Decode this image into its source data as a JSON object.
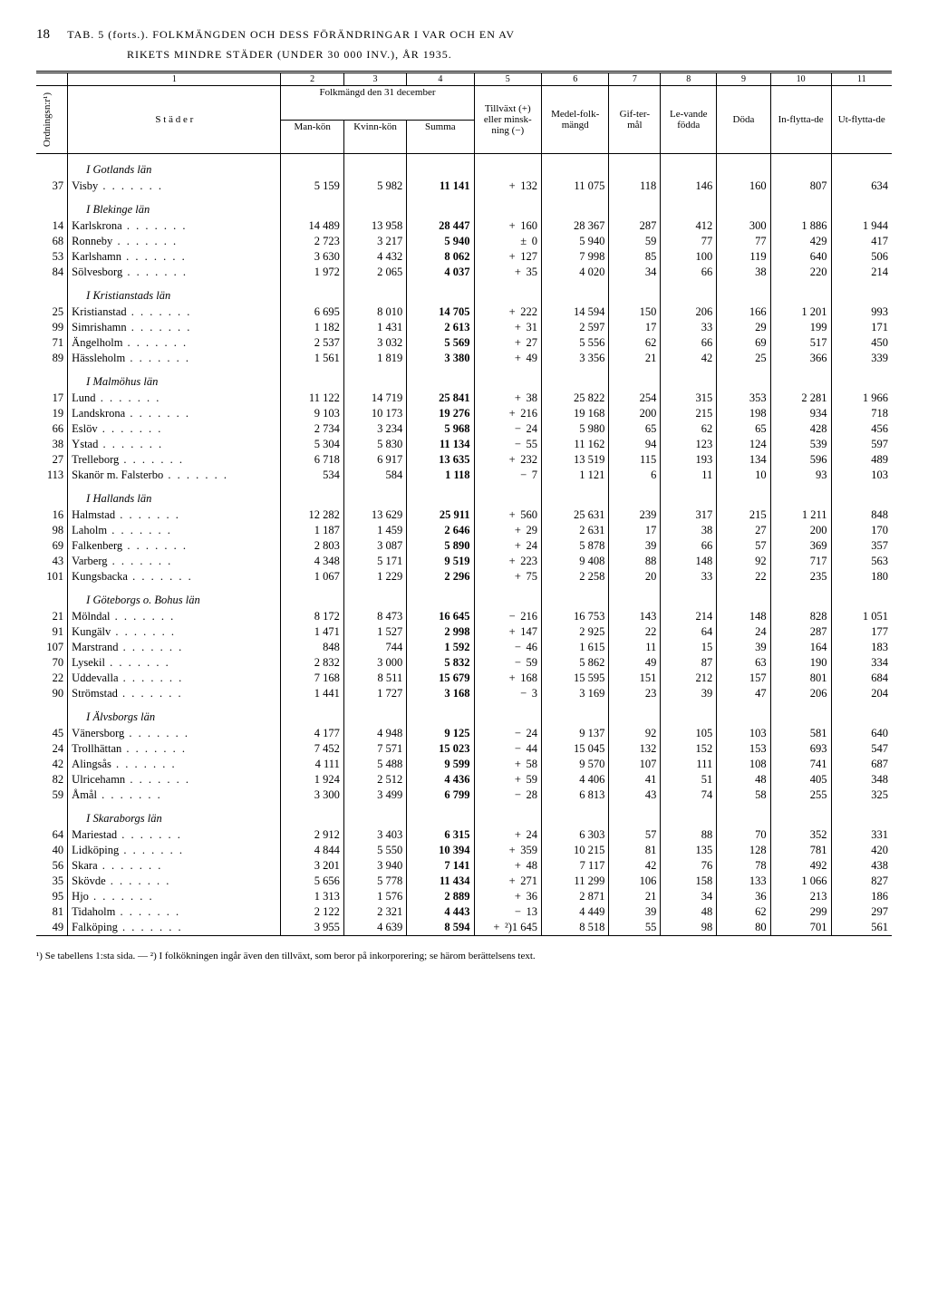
{
  "page_number": "18",
  "title_line1": "TAB. 5 (forts.).   FOLKMÄNGDEN OCH DESS FÖRÄNDRINGAR I VAR OCH EN AV",
  "title_line2": "RIKETS MINDRE STÄDER (UNDER 30 000 INV.), ÅR 1935.",
  "col_nums": [
    "1",
    "2",
    "3",
    "4",
    "5",
    "6",
    "7",
    "8",
    "9",
    "10",
    "11"
  ],
  "headers": {
    "ord": "Ordningsn:r¹)",
    "stader": "S t ä d e r",
    "folkmangd": "Folkmängd den 31 december",
    "man": "Man-kön",
    "kvinn": "Kvinn-kön",
    "summa": "Summa",
    "tillvaxt": "Tillväxt (+) eller minsk-ning (−)",
    "medel": "Medel-folk-mängd",
    "gifter": "Gif-ter-mål",
    "levande": "Le-vande födda",
    "doda": "Döda",
    "inflytta": "In-flytta-de",
    "utflytta": "Ut-flytta-de"
  },
  "regions": [
    {
      "name": "I Gotlands län",
      "rows": [
        {
          "o": "37",
          "c": "Visby",
          "m": "5 159",
          "k": "5 982",
          "s": "11 141",
          "t": "+",
          "tv": "132",
          "mf": "11 075",
          "g": "118",
          "lv": "146",
          "d": "160",
          "in": "807",
          "ut": "634"
        }
      ]
    },
    {
      "name": "I Blekinge län",
      "rows": [
        {
          "o": "14",
          "c": "Karlskrona",
          "m": "14 489",
          "k": "13 958",
          "s": "28 447",
          "t": "+",
          "tv": "160",
          "mf": "28 367",
          "g": "287",
          "lv": "412",
          "d": "300",
          "in": "1 886",
          "ut": "1 944"
        },
        {
          "o": "68",
          "c": "Ronneby",
          "m": "2 723",
          "k": "3 217",
          "s": "5 940",
          "t": "±",
          "tv": "0",
          "mf": "5 940",
          "g": "59",
          "lv": "77",
          "d": "77",
          "in": "429",
          "ut": "417"
        },
        {
          "o": "53",
          "c": "Karlshamn",
          "m": "3 630",
          "k": "4 432",
          "s": "8 062",
          "t": "+",
          "tv": "127",
          "mf": "7 998",
          "g": "85",
          "lv": "100",
          "d": "119",
          "in": "640",
          "ut": "506"
        },
        {
          "o": "84",
          "c": "Sölvesborg",
          "m": "1 972",
          "k": "2 065",
          "s": "4 037",
          "t": "+",
          "tv": "35",
          "mf": "4 020",
          "g": "34",
          "lv": "66",
          "d": "38",
          "in": "220",
          "ut": "214"
        }
      ]
    },
    {
      "name": "I Kristianstads län",
      "rows": [
        {
          "o": "25",
          "c": "Kristianstad",
          "m": "6 695",
          "k": "8 010",
          "s": "14 705",
          "t": "+",
          "tv": "222",
          "mf": "14 594",
          "g": "150",
          "lv": "206",
          "d": "166",
          "in": "1 201",
          "ut": "993"
        },
        {
          "o": "99",
          "c": "Simrishamn",
          "m": "1 182",
          "k": "1 431",
          "s": "2 613",
          "t": "+",
          "tv": "31",
          "mf": "2 597",
          "g": "17",
          "lv": "33",
          "d": "29",
          "in": "199",
          "ut": "171"
        },
        {
          "o": "71",
          "c": "Ängelholm",
          "m": "2 537",
          "k": "3 032",
          "s": "5 569",
          "t": "+",
          "tv": "27",
          "mf": "5 556",
          "g": "62",
          "lv": "66",
          "d": "69",
          "in": "517",
          "ut": "450"
        },
        {
          "o": "89",
          "c": "Hässleholm",
          "m": "1 561",
          "k": "1 819",
          "s": "3 380",
          "t": "+",
          "tv": "49",
          "mf": "3 356",
          "g": "21",
          "lv": "42",
          "d": "25",
          "in": "366",
          "ut": "339"
        }
      ]
    },
    {
      "name": "I Malmöhus län",
      "rows": [
        {
          "o": "17",
          "c": "Lund",
          "m": "11 122",
          "k": "14 719",
          "s": "25 841",
          "t": "+",
          "tv": "38",
          "mf": "25 822",
          "g": "254",
          "lv": "315",
          "d": "353",
          "in": "2 281",
          "ut": "1 966"
        },
        {
          "o": "19",
          "c": "Landskrona",
          "m": "9 103",
          "k": "10 173",
          "s": "19 276",
          "t": "+",
          "tv": "216",
          "mf": "19 168",
          "g": "200",
          "lv": "215",
          "d": "198",
          "in": "934",
          "ut": "718"
        },
        {
          "o": "66",
          "c": "Eslöv",
          "m": "2 734",
          "k": "3 234",
          "s": "5 968",
          "t": "−",
          "tv": "24",
          "mf": "5 980",
          "g": "65",
          "lv": "62",
          "d": "65",
          "in": "428",
          "ut": "456"
        },
        {
          "o": "38",
          "c": "Ystad",
          "m": "5 304",
          "k": "5 830",
          "s": "11 134",
          "t": "−",
          "tv": "55",
          "mf": "11 162",
          "g": "94",
          "lv": "123",
          "d": "124",
          "in": "539",
          "ut": "597"
        },
        {
          "o": "27",
          "c": "Trelleborg",
          "m": "6 718",
          "k": "6 917",
          "s": "13 635",
          "t": "+",
          "tv": "232",
          "mf": "13 519",
          "g": "115",
          "lv": "193",
          "d": "134",
          "in": "596",
          "ut": "489"
        },
        {
          "o": "113",
          "c": "Skanör m. Falsterbo",
          "m": "534",
          "k": "584",
          "s": "1 118",
          "t": "−",
          "tv": "7",
          "mf": "1 121",
          "g": "6",
          "lv": "11",
          "d": "10",
          "in": "93",
          "ut": "103"
        }
      ]
    },
    {
      "name": "I Hallands län",
      "rows": [
        {
          "o": "16",
          "c": "Halmstad",
          "m": "12 282",
          "k": "13 629",
          "s": "25 911",
          "t": "+",
          "tv": "560",
          "mf": "25 631",
          "g": "239",
          "lv": "317",
          "d": "215",
          "in": "1 211",
          "ut": "848"
        },
        {
          "o": "98",
          "c": "Laholm",
          "m": "1 187",
          "k": "1 459",
          "s": "2 646",
          "t": "+",
          "tv": "29",
          "mf": "2 631",
          "g": "17",
          "lv": "38",
          "d": "27",
          "in": "200",
          "ut": "170"
        },
        {
          "o": "69",
          "c": "Falkenberg",
          "m": "2 803",
          "k": "3 087",
          "s": "5 890",
          "t": "+",
          "tv": "24",
          "mf": "5 878",
          "g": "39",
          "lv": "66",
          "d": "57",
          "in": "369",
          "ut": "357"
        },
        {
          "o": "43",
          "c": "Varberg",
          "m": "4 348",
          "k": "5 171",
          "s": "9 519",
          "t": "+",
          "tv": "223",
          "mf": "9 408",
          "g": "88",
          "lv": "148",
          "d": "92",
          "in": "717",
          "ut": "563"
        },
        {
          "o": "101",
          "c": "Kungsbacka",
          "m": "1 067",
          "k": "1 229",
          "s": "2 296",
          "t": "+",
          "tv": "75",
          "mf": "2 258",
          "g": "20",
          "lv": "33",
          "d": "22",
          "in": "235",
          "ut": "180"
        }
      ]
    },
    {
      "name": "I Göteborgs o. Bohus län",
      "rows": [
        {
          "o": "21",
          "c": "Mölndal",
          "m": "8 172",
          "k": "8 473",
          "s": "16 645",
          "t": "−",
          "tv": "216",
          "mf": "16 753",
          "g": "143",
          "lv": "214",
          "d": "148",
          "in": "828",
          "ut": "1 051"
        },
        {
          "o": "91",
          "c": "Kungälv",
          "m": "1 471",
          "k": "1 527",
          "s": "2 998",
          "t": "+",
          "tv": "147",
          "mf": "2 925",
          "g": "22",
          "lv": "64",
          "d": "24",
          "in": "287",
          "ut": "177"
        },
        {
          "o": "107",
          "c": "Marstrand",
          "m": "848",
          "k": "744",
          "s": "1 592",
          "t": "−",
          "tv": "46",
          "mf": "1 615",
          "g": "11",
          "lv": "15",
          "d": "39",
          "in": "164",
          "ut": "183"
        },
        {
          "o": "70",
          "c": "Lysekil",
          "m": "2 832",
          "k": "3 000",
          "s": "5 832",
          "t": "−",
          "tv": "59",
          "mf": "5 862",
          "g": "49",
          "lv": "87",
          "d": "63",
          "in": "190",
          "ut": "334"
        },
        {
          "o": "22",
          "c": "Uddevalla",
          "m": "7 168",
          "k": "8 511",
          "s": "15 679",
          "t": "+",
          "tv": "168",
          "mf": "15 595",
          "g": "151",
          "lv": "212",
          "d": "157",
          "in": "801",
          "ut": "684"
        },
        {
          "o": "90",
          "c": "Strömstad",
          "m": "1 441",
          "k": "1 727",
          "s": "3 168",
          "t": "−",
          "tv": "3",
          "mf": "3 169",
          "g": "23",
          "lv": "39",
          "d": "47",
          "in": "206",
          "ut": "204"
        }
      ]
    },
    {
      "name": "I Älvsborgs län",
      "rows": [
        {
          "o": "45",
          "c": "Vänersborg",
          "m": "4 177",
          "k": "4 948",
          "s": "9 125",
          "t": "−",
          "tv": "24",
          "mf": "9 137",
          "g": "92",
          "lv": "105",
          "d": "103",
          "in": "581",
          "ut": "640"
        },
        {
          "o": "24",
          "c": "Trollhättan",
          "m": "7 452",
          "k": "7 571",
          "s": "15 023",
          "t": "−",
          "tv": "44",
          "mf": "15 045",
          "g": "132",
          "lv": "152",
          "d": "153",
          "in": "693",
          "ut": "547"
        },
        {
          "o": "42",
          "c": "Alingsås",
          "m": "4 111",
          "k": "5 488",
          "s": "9 599",
          "t": "+",
          "tv": "58",
          "mf": "9 570",
          "g": "107",
          "lv": "111",
          "d": "108",
          "in": "741",
          "ut": "687"
        },
        {
          "o": "82",
          "c": "Ulricehamn",
          "m": "1 924",
          "k": "2 512",
          "s": "4 436",
          "t": "+",
          "tv": "59",
          "mf": "4 406",
          "g": "41",
          "lv": "51",
          "d": "48",
          "in": "405",
          "ut": "348"
        },
        {
          "o": "59",
          "c": "Åmål",
          "m": "3 300",
          "k": "3 499",
          "s": "6 799",
          "t": "−",
          "tv": "28",
          "mf": "6 813",
          "g": "43",
          "lv": "74",
          "d": "58",
          "in": "255",
          "ut": "325"
        }
      ]
    },
    {
      "name": "I Skaraborgs län",
      "rows": [
        {
          "o": "64",
          "c": "Mariestad",
          "m": "2 912",
          "k": "3 403",
          "s": "6 315",
          "t": "+",
          "tv": "24",
          "mf": "6 303",
          "g": "57",
          "lv": "88",
          "d": "70",
          "in": "352",
          "ut": "331"
        },
        {
          "o": "40",
          "c": "Lidköping",
          "m": "4 844",
          "k": "5 550",
          "s": "10 394",
          "t": "+",
          "tv": "359",
          "mf": "10 215",
          "g": "81",
          "lv": "135",
          "d": "128",
          "in": "781",
          "ut": "420"
        },
        {
          "o": "56",
          "c": "Skara",
          "m": "3 201",
          "k": "3 940",
          "s": "7 141",
          "t": "+",
          "tv": "48",
          "mf": "7 117",
          "g": "42",
          "lv": "76",
          "d": "78",
          "in": "492",
          "ut": "438"
        },
        {
          "o": "35",
          "c": "Skövde",
          "m": "5 656",
          "k": "5 778",
          "s": "11 434",
          "t": "+",
          "tv": "271",
          "mf": "11 299",
          "g": "106",
          "lv": "158",
          "d": "133",
          "in": "1 066",
          "ut": "827"
        },
        {
          "o": "95",
          "c": "Hjo",
          "m": "1 313",
          "k": "1 576",
          "s": "2 889",
          "t": "+",
          "tv": "36",
          "mf": "2 871",
          "g": "21",
          "lv": "34",
          "d": "36",
          "in": "213",
          "ut": "186"
        },
        {
          "o": "81",
          "c": "Tidaholm",
          "m": "2 122",
          "k": "2 321",
          "s": "4 443",
          "t": "−",
          "tv": "13",
          "mf": "4 449",
          "g": "39",
          "lv": "48",
          "d": "62",
          "in": "299",
          "ut": "297"
        },
        {
          "o": "49",
          "c": "Falköping",
          "m": "3 955",
          "k": "4 639",
          "s": "8 594",
          "t": "+",
          "tv": "²)1 645",
          "mf": "8 518",
          "g": "55",
          "lv": "98",
          "d": "80",
          "in": "701",
          "ut": "561"
        }
      ]
    }
  ],
  "footnote": "¹) Se tabellens 1:sta sida. — ²) I folkökningen ingår även den tillväxt, som beror på inkorporering; se härom berättelsens text."
}
